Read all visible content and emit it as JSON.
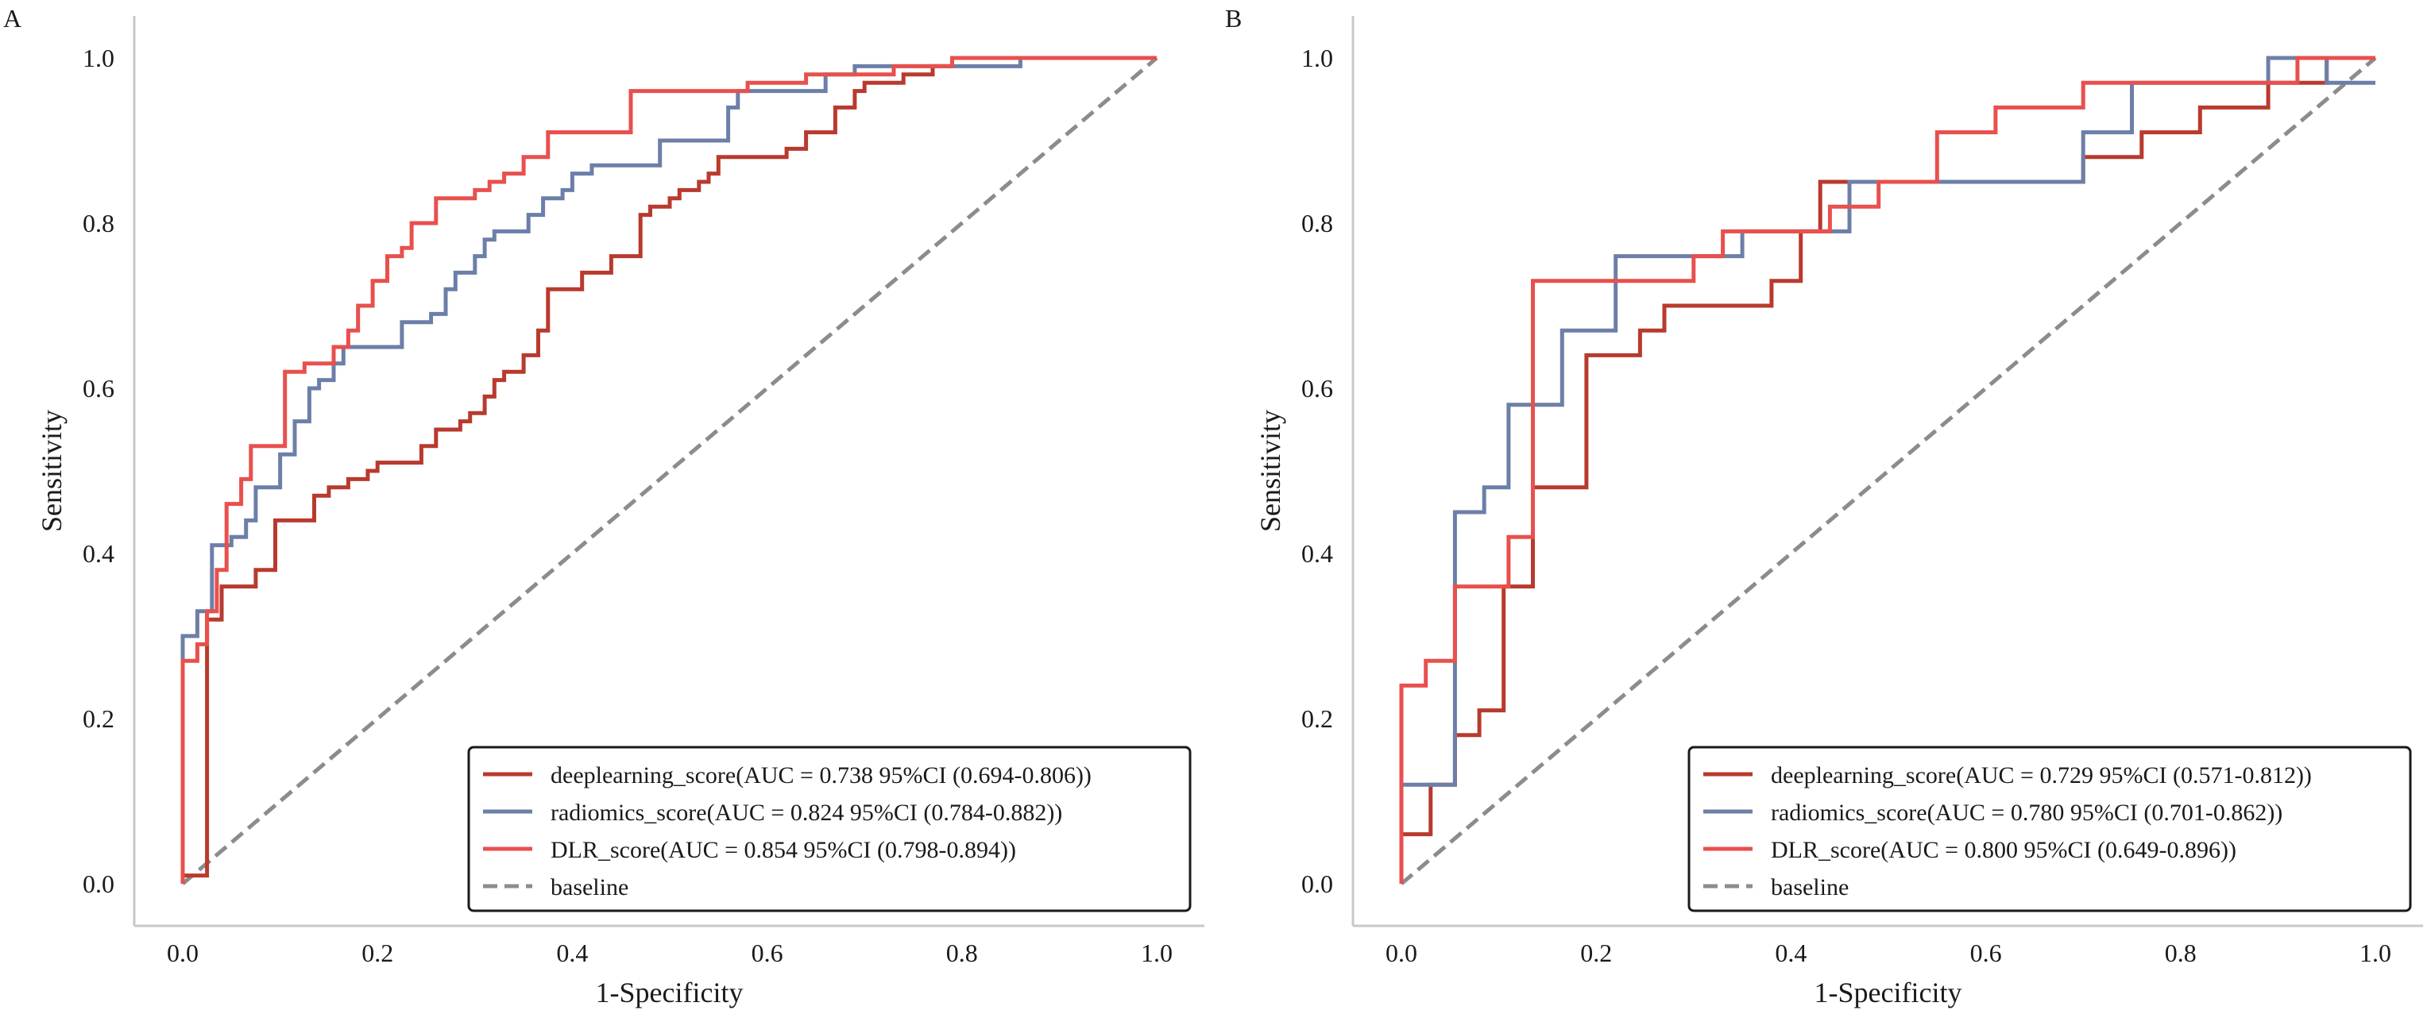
{
  "chart_data": [
    {
      "type": "line",
      "panel_label": "A",
      "title": "",
      "xlabel": "1-Specificity",
      "ylabel": "Sensitivity",
      "xlim": [
        0.0,
        1.0
      ],
      "ylim": [
        0.0,
        1.0
      ],
      "xticks": [
        "0.0",
        "0.2",
        "0.4",
        "0.6",
        "0.8",
        "1.0"
      ],
      "yticks": [
        "0.0",
        "0.2",
        "0.4",
        "0.6",
        "0.8",
        "1.0"
      ],
      "grid": false,
      "legend_position": "bottom-right",
      "series": [
        {
          "name": "deeplearning_score(AUC = 0.738 95%CI (0.694-0.806))",
          "color": "#B83A2E",
          "style": "step",
          "x": [
            0.0,
            0.0,
            0.025,
            0.025,
            0.04,
            0.04,
            0.075,
            0.075,
            0.095,
            0.095,
            0.135,
            0.135,
            0.15,
            0.15,
            0.17,
            0.17,
            0.19,
            0.19,
            0.2,
            0.2,
            0.245,
            0.245,
            0.26,
            0.26,
            0.285,
            0.285,
            0.295,
            0.295,
            0.31,
            0.31,
            0.32,
            0.32,
            0.33,
            0.33,
            0.35,
            0.35,
            0.365,
            0.365,
            0.375,
            0.375,
            0.41,
            0.41,
            0.44,
            0.44,
            0.47,
            0.47,
            0.48,
            0.48,
            0.5,
            0.5,
            0.51,
            0.51,
            0.53,
            0.53,
            0.54,
            0.54,
            0.55,
            0.55,
            0.57,
            0.57,
            0.6,
            0.6,
            0.62,
            0.62,
            0.64,
            0.64,
            0.67,
            0.67,
            0.69,
            0.69,
            0.7,
            0.7,
            0.72,
            0.72,
            0.74,
            0.74,
            0.77,
            0.77,
            0.79,
            0.79,
            0.81,
            0.81,
            1.0
          ],
          "y": [
            0.01,
            0.01,
            0.01,
            0.32,
            0.32,
            0.36,
            0.36,
            0.38,
            0.38,
            0.44,
            0.44,
            0.47,
            0.47,
            0.48,
            0.48,
            0.49,
            0.49,
            0.5,
            0.5,
            0.51,
            0.51,
            0.53,
            0.53,
            0.55,
            0.55,
            0.56,
            0.56,
            0.57,
            0.57,
            0.59,
            0.59,
            0.61,
            0.61,
            0.62,
            0.62,
            0.64,
            0.64,
            0.67,
            0.67,
            0.72,
            0.72,
            0.74,
            0.74,
            0.76,
            0.76,
            0.81,
            0.81,
            0.82,
            0.82,
            0.83,
            0.83,
            0.84,
            0.84,
            0.85,
            0.85,
            0.86,
            0.86,
            0.88,
            0.88,
            0.88,
            0.88,
            0.88,
            0.88,
            0.89,
            0.89,
            0.91,
            0.91,
            0.94,
            0.94,
            0.96,
            0.96,
            0.97,
            0.97,
            0.97,
            0.97,
            0.98,
            0.98,
            0.99,
            0.99,
            1.0,
            1.0,
            1.0,
            1.0
          ]
        },
        {
          "name": "radiomics_score(AUC = 0.824 95%CI (0.784-0.882))",
          "color": "#6C7FA8",
          "style": "step",
          "x": [
            0.0,
            0.0,
            0.015,
            0.015,
            0.03,
            0.03,
            0.05,
            0.05,
            0.065,
            0.065,
            0.075,
            0.075,
            0.1,
            0.1,
            0.115,
            0.115,
            0.13,
            0.13,
            0.14,
            0.14,
            0.155,
            0.155,
            0.165,
            0.165,
            0.225,
            0.225,
            0.255,
            0.255,
            0.27,
            0.27,
            0.28,
            0.28,
            0.3,
            0.3,
            0.31,
            0.31,
            0.32,
            0.32,
            0.355,
            0.355,
            0.37,
            0.37,
            0.39,
            0.39,
            0.4,
            0.4,
            0.42,
            0.42,
            0.49,
            0.49,
            0.56,
            0.56,
            0.57,
            0.57,
            0.66,
            0.66,
            0.69,
            0.69,
            0.86,
            0.86
          ],
          "y": [
            0.0,
            0.3,
            0.3,
            0.33,
            0.33,
            0.41,
            0.41,
            0.42,
            0.42,
            0.44,
            0.44,
            0.48,
            0.48,
            0.52,
            0.52,
            0.56,
            0.56,
            0.6,
            0.6,
            0.61,
            0.61,
            0.63,
            0.63,
            0.65,
            0.65,
            0.68,
            0.68,
            0.69,
            0.69,
            0.72,
            0.72,
            0.74,
            0.74,
            0.76,
            0.76,
            0.78,
            0.78,
            0.79,
            0.79,
            0.81,
            0.81,
            0.83,
            0.83,
            0.84,
            0.84,
            0.86,
            0.86,
            0.87,
            0.87,
            0.9,
            0.9,
            0.94,
            0.94,
            0.96,
            0.96,
            0.98,
            0.98,
            0.99,
            0.99,
            1.0
          ]
        },
        {
          "name": "DLR_score(AUC = 0.854 95%CI (0.798-0.894))",
          "color": "#E8504E",
          "style": "step",
          "x": [
            0.0,
            0.0,
            0.015,
            0.015,
            0.025,
            0.025,
            0.035,
            0.035,
            0.045,
            0.045,
            0.06,
            0.06,
            0.07,
            0.07,
            0.105,
            0.105,
            0.125,
            0.125,
            0.155,
            0.155,
            0.17,
            0.17,
            0.18,
            0.18,
            0.195,
            0.195,
            0.21,
            0.21,
            0.225,
            0.225,
            0.235,
            0.235,
            0.26,
            0.26,
            0.3,
            0.3,
            0.315,
            0.315,
            0.33,
            0.33,
            0.35,
            0.35,
            0.375,
            0.375,
            0.46,
            0.46,
            0.58,
            0.58,
            0.64,
            0.64,
            0.73,
            0.73,
            0.79,
            0.79,
            1.0
          ],
          "y": [
            0.0,
            0.27,
            0.27,
            0.29,
            0.29,
            0.33,
            0.33,
            0.38,
            0.38,
            0.46,
            0.46,
            0.49,
            0.49,
            0.53,
            0.53,
            0.62,
            0.62,
            0.63,
            0.63,
            0.65,
            0.65,
            0.67,
            0.67,
            0.7,
            0.7,
            0.73,
            0.73,
            0.76,
            0.76,
            0.77,
            0.77,
            0.8,
            0.8,
            0.83,
            0.83,
            0.84,
            0.84,
            0.85,
            0.85,
            0.86,
            0.86,
            0.88,
            0.88,
            0.91,
            0.91,
            0.96,
            0.96,
            0.97,
            0.97,
            0.98,
            0.98,
            0.99,
            0.99,
            1.0,
            1.0
          ]
        },
        {
          "name": "baseline",
          "color": "#8C8C8C",
          "style": "dashed",
          "x": [
            0.0,
            1.0
          ],
          "y": [
            0.0,
            1.0
          ]
        }
      ]
    },
    {
      "type": "line",
      "panel_label": "B",
      "title": "",
      "xlabel": "1-Specificity",
      "ylabel": "Sensitivity",
      "xlim": [
        0.0,
        1.0
      ],
      "ylim": [
        0.0,
        1.0
      ],
      "xticks": [
        "0.0",
        "0.2",
        "0.4",
        "0.6",
        "0.8",
        "1.0"
      ],
      "yticks": [
        "0.0",
        "0.2",
        "0.4",
        "0.6",
        "0.8",
        "1.0"
      ],
      "grid": false,
      "legend_position": "bottom-right",
      "series": [
        {
          "name": "deeplearning_score(AUC = 0.729 95%CI (0.571-0.812))",
          "color": "#B83A2E",
          "style": "step",
          "x": [
            0.0,
            0.0,
            0.03,
            0.03,
            0.055,
            0.055,
            0.08,
            0.08,
            0.105,
            0.105,
            0.135,
            0.135,
            0.19,
            0.19,
            0.245,
            0.245,
            0.27,
            0.27,
            0.38,
            0.38,
            0.41,
            0.41,
            0.43,
            0.43,
            0.65,
            0.65,
            0.7,
            0.7,
            0.76,
            0.76,
            0.82,
            0.82,
            0.89,
            0.89,
            0.95,
            0.95,
            1.0
          ],
          "y": [
            0.0,
            0.06,
            0.06,
            0.12,
            0.12,
            0.18,
            0.18,
            0.21,
            0.21,
            0.36,
            0.36,
            0.48,
            0.48,
            0.64,
            0.64,
            0.67,
            0.67,
            0.7,
            0.7,
            0.73,
            0.73,
            0.79,
            0.79,
            0.85,
            0.85,
            0.85,
            0.85,
            0.88,
            0.88,
            0.91,
            0.91,
            0.94,
            0.94,
            0.97,
            0.97,
            1.0,
            1.0
          ]
        },
        {
          "name": "radiomics_score(AUC = 0.780 95%CI (0.701-0.862))",
          "color": "#6C7FA8",
          "style": "step",
          "x": [
            0.0,
            0.0,
            0.055,
            0.055,
            0.085,
            0.085,
            0.11,
            0.11,
            0.165,
            0.165,
            0.22,
            0.22,
            0.35,
            0.35,
            0.41,
            0.41,
            0.46,
            0.46,
            0.6,
            0.6,
            0.7,
            0.7,
            0.75,
            0.75,
            0.89,
            0.89,
            0.95,
            0.95,
            1.0
          ],
          "y": [
            0.0,
            0.12,
            0.12,
            0.45,
            0.45,
            0.48,
            0.48,
            0.58,
            0.58,
            0.67,
            0.67,
            0.76,
            0.76,
            0.79,
            0.79,
            0.79,
            0.79,
            0.85,
            0.85,
            0.85,
            0.85,
            0.91,
            0.91,
            0.97,
            0.97,
            1.0,
            1.0,
            0.97,
            0.97
          ]
        },
        {
          "name": "DLR_score(AUC = 0.800 95%CI (0.649-0.896))",
          "color": "#E8504E",
          "style": "step",
          "x": [
            0.0,
            0.0,
            0.025,
            0.025,
            0.055,
            0.055,
            0.11,
            0.11,
            0.135,
            0.135,
            0.3,
            0.3,
            0.33,
            0.33,
            0.44,
            0.44,
            0.49,
            0.49,
            0.55,
            0.55,
            0.61,
            0.61,
            0.7,
            0.7,
            0.78,
            0.78,
            0.92,
            0.92,
            1.0
          ],
          "y": [
            0.0,
            0.24,
            0.24,
            0.27,
            0.27,
            0.36,
            0.36,
            0.42,
            0.42,
            0.73,
            0.73,
            0.76,
            0.76,
            0.79,
            0.79,
            0.82,
            0.82,
            0.85,
            0.85,
            0.91,
            0.91,
            0.94,
            0.94,
            0.97,
            0.97,
            0.97,
            0.97,
            1.0,
            1.0
          ]
        },
        {
          "name": "baseline",
          "color": "#8C8C8C",
          "style": "dashed",
          "x": [
            0.0,
            1.0
          ],
          "y": [
            0.0,
            1.0
          ]
        }
      ]
    }
  ]
}
